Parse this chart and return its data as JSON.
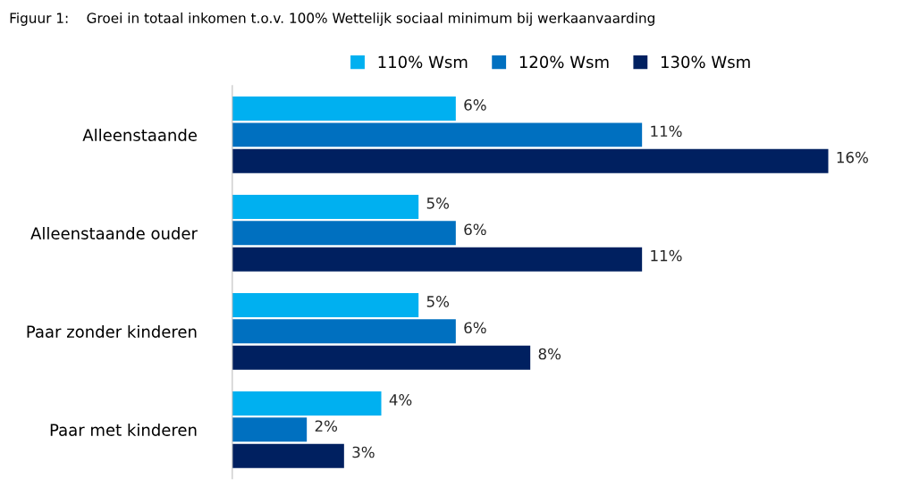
{
  "chart_data": {
    "type": "bar",
    "orientation": "horizontal",
    "title": "Figuur 1:    Groei in totaal inkomen t.o.v. 100% Wettelijk sociaal minimum bij werkaanvaarding",
    "categories": [
      "Alleenstaande",
      "Alleenstaande ouder",
      "Paar zonder kinderen",
      "Paar met kinderen"
    ],
    "series": [
      {
        "name": "110% Wsm",
        "color": "#00b0f0",
        "values": [
          6,
          5,
          5,
          4
        ],
        "value_labels": [
          "6%",
          "5%",
          "5%",
          "4%"
        ]
      },
      {
        "name": "120% Wsm",
        "color": "#0070c0",
        "values": [
          11,
          6,
          6,
          2
        ],
        "value_labels": [
          "11%",
          "6%",
          "6%",
          "2%"
        ]
      },
      {
        "name": "130% Wsm",
        "color": "#002060",
        "values": [
          16,
          11,
          8,
          3
        ],
        "value_labels": [
          "16%",
          "11%",
          "8%",
          "3%"
        ]
      }
    ],
    "legend": "top",
    "grid": false,
    "tick_labels": "y"
  }
}
